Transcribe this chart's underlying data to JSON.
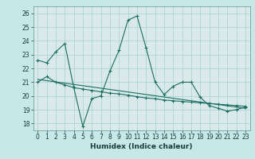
{
  "title": "",
  "xlabel": "Humidex (Indice chaleur)",
  "ylabel": "",
  "bg_color": "#c6e8e8",
  "plot_bg_color": "#daeaea",
  "line_color": "#1a6e62",
  "grid_color": "#afd4d4",
  "xlim": [
    -0.5,
    23.5
  ],
  "ylim": [
    17.5,
    26.5
  ],
  "yticks": [
    18,
    19,
    20,
    21,
    22,
    23,
    24,
    25,
    26
  ],
  "xticks": [
    0,
    1,
    2,
    3,
    4,
    5,
    6,
    7,
    8,
    9,
    10,
    11,
    12,
    13,
    14,
    15,
    16,
    17,
    18,
    19,
    20,
    21,
    22,
    23
  ],
  "series1_x": [
    0,
    1,
    2,
    3,
    4,
    5,
    6,
    7,
    8,
    9,
    10,
    11,
    12,
    13,
    14,
    15,
    16,
    17,
    18,
    19,
    20,
    21,
    22,
    23
  ],
  "series1_y": [
    22.6,
    22.4,
    23.2,
    23.8,
    20.6,
    17.8,
    19.8,
    20.0,
    21.8,
    23.3,
    25.5,
    25.8,
    23.5,
    21.0,
    20.1,
    20.7,
    21.0,
    21.0,
    19.9,
    19.3,
    19.1,
    18.9,
    19.0,
    19.2
  ],
  "series2_x": [
    0,
    1,
    2,
    3,
    4,
    5,
    6,
    7,
    8,
    9,
    10,
    11,
    12,
    13,
    14,
    15,
    16,
    17,
    18,
    19,
    20,
    21,
    22,
    23
  ],
  "series2_y": [
    21.0,
    21.4,
    21.0,
    20.8,
    20.6,
    20.5,
    20.4,
    20.3,
    20.2,
    20.15,
    20.05,
    19.95,
    19.85,
    19.8,
    19.7,
    19.65,
    19.6,
    19.55,
    19.5,
    19.45,
    19.4,
    19.35,
    19.3,
    19.25
  ],
  "series3_x": [
    0,
    23
  ],
  "series3_y": [
    21.2,
    19.1
  ],
  "font_size": 5.5,
  "xlabel_fontsize": 6.5
}
